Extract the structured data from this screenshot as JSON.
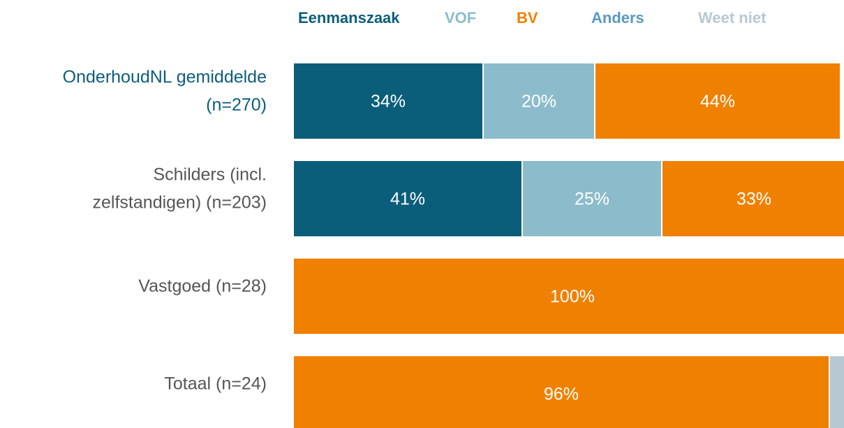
{
  "chart_data": {
    "type": "stacked-bar-horizontal",
    "categories": [
      [
        "OnderhoudNL gemiddelde",
        "(n=270)"
      ],
      [
        "Schilders (incl.",
        "zelfstandigen) (n=203)"
      ],
      [
        "Vastgoed (n=28)"
      ],
      [
        "Totaal (n=24)"
      ]
    ],
    "category_colors": [
      "#0b5e7a",
      "#555555",
      "#555555",
      "#555555"
    ],
    "series": [
      {
        "name": "Eenmanszaak",
        "color": "#0b5e7a",
        "values": [
          34,
          41,
          null,
          null
        ],
        "value_labels": [
          "34%",
          "41%",
          null,
          null
        ]
      },
      {
        "name": "VOF",
        "color": "#8cbccb",
        "values": [
          20,
          25,
          null,
          null
        ],
        "value_labels": [
          "20%",
          "25%",
          null,
          null
        ]
      },
      {
        "name": "BV",
        "color": "#f08000",
        "values": [
          44,
          33,
          100,
          96
        ],
        "value_labels": [
          "44%",
          "33%",
          "100%",
          "96%"
        ]
      },
      {
        "name": "Anders",
        "color": "#5a9abf",
        "values": [
          null,
          null,
          null,
          null
        ],
        "value_labels": [
          null,
          null,
          null,
          null
        ]
      },
      {
        "name": "Weet niet",
        "color": "#b8c8d3",
        "values": [
          null,
          null,
          null,
          4
        ],
        "value_labels": [
          null,
          null,
          null,
          null
        ]
      }
    ],
    "xlim": [
      0,
      100
    ],
    "legend": "top"
  }
}
